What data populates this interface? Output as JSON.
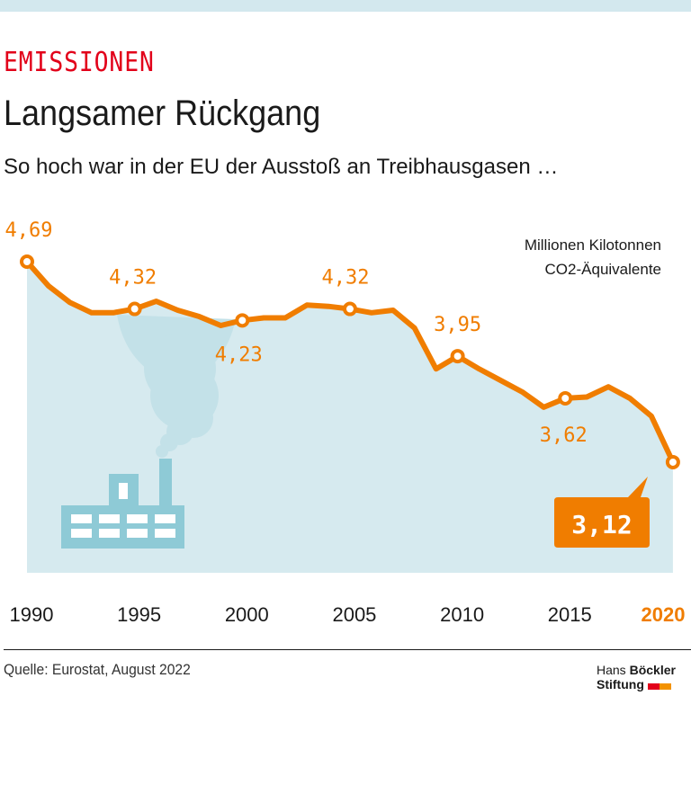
{
  "header": {
    "kicker": "EMISSIONEN",
    "title": "Langsamer Rückgang",
    "subtitle": "So hoch war in der EU der Ausstoß an Treibhausgasen …"
  },
  "chart_data": {
    "type": "area",
    "unit_label_line1": "Millionen Kilotonnen",
    "unit_label_line2": "CO2-Äquivalente",
    "x": [
      1990,
      1991,
      1992,
      1993,
      1994,
      1995,
      1996,
      1997,
      1998,
      1999,
      2000,
      2001,
      2002,
      2003,
      2004,
      2005,
      2006,
      2007,
      2008,
      2009,
      2010,
      2011,
      2012,
      2013,
      2014,
      2015,
      2016,
      2017,
      2018,
      2019,
      2020
    ],
    "values": [
      4.69,
      4.5,
      4.37,
      4.29,
      4.29,
      4.32,
      4.38,
      4.31,
      4.26,
      4.19,
      4.23,
      4.25,
      4.25,
      4.35,
      4.34,
      4.32,
      4.29,
      4.31,
      4.17,
      3.85,
      3.95,
      3.85,
      3.76,
      3.67,
      3.55,
      3.62,
      3.63,
      3.71,
      3.62,
      3.48,
      3.12
    ],
    "labeled_points": [
      {
        "year": 1990,
        "label": "4,69"
      },
      {
        "year": 1995,
        "label": "4,32"
      },
      {
        "year": 2000,
        "label": "4,23"
      },
      {
        "year": 2005,
        "label": "4,32"
      },
      {
        "year": 2010,
        "label": "3,95"
      },
      {
        "year": 2015,
        "label": "3,62"
      },
      {
        "year": 2020,
        "label": "3,12"
      }
    ],
    "x_tick_labels": [
      "1990",
      "1995",
      "2000",
      "2005",
      "2010",
      "2015",
      "2020"
    ],
    "highlight_tick": "2020",
    "colors": {
      "line": "#f07d00",
      "area": "#d6eaef",
      "factory": "#8ecad6",
      "smoke": "#c3e1e8",
      "highlight": "#f07d00"
    }
  },
  "footer": {
    "source": "Quelle: Eurostat, August 2022",
    "logo_line1_light": "Hans",
    "logo_line1_bold": "Böckler",
    "logo_line2": "Stiftung"
  }
}
